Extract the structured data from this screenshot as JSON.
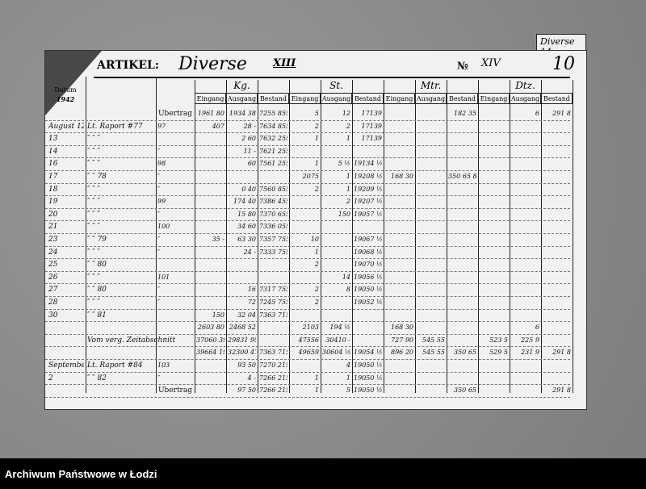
{
  "tab_label": "Diverse 14",
  "header": {
    "artikel_label": "ARTIKEL:",
    "artikel_value": "Diverse",
    "artikel_roman": "XIII",
    "number_label": "№",
    "number_value": "XIV",
    "page_number": "10",
    "datum_label": "Datum",
    "year": "1942"
  },
  "groups": [
    "Kg.",
    "St.",
    "Mtr.",
    "Dtz."
  ],
  "subheaders": [
    "Eingang",
    "Ausgang",
    "Bestand"
  ],
  "columns": [
    "date",
    "text",
    "ref",
    "kg_in",
    "kg_out",
    "kg_bal",
    "st_in",
    "st_out",
    "st_bal",
    "mtr_in",
    "mtr_out",
    "mtr_bal",
    "dtz_in",
    "dtz_out",
    "dtz_bal"
  ],
  "rows": [
    {
      "text": "Übertrag",
      "kg_in": "1961 80",
      "kg_out": "1934 38",
      "kg_bal": "7255 855",
      "st_in": "5",
      "st_out": "12",
      "st_bal": "17139",
      "mtr_bal": "182 35",
      "dtz_out": "6",
      "dtz_bal": "291 8"
    },
    {
      "date": "August 12",
      "text": "Lt. Raport #77",
      "ref": "97",
      "kg_in": "407",
      "kg_out": "28 -",
      "kg_bal": "7634 855",
      "st_in": "2",
      "st_out": "2",
      "st_bal": "17139"
    },
    {
      "date": "13",
      "text": "″  ″  ″",
      "kg_out": "2 60",
      "kg_bal": "7632 255",
      "st_in": "1",
      "st_out": "1",
      "st_bal": "17139"
    },
    {
      "date": "14",
      "text": "″  ″  ″",
      "ref": "″",
      "kg_out": "11 -",
      "kg_bal": "7621 255"
    },
    {
      "date": "16",
      "text": "″  ″  ″",
      "ref": "98",
      "kg_out": "60",
      "kg_bal": "7561 255",
      "st_in": "1",
      "st_out": "5 ½",
      "st_bal": "19134 ½"
    },
    {
      "date": "17",
      "text": "″  ″  78",
      "ref": "″",
      "st_in": "2075",
      "st_out": "1",
      "st_bal": "19208 ½",
      "mtr_in": "168 30",
      "mtr_bal": "350 65 8"
    },
    {
      "date": "18",
      "text": "″  ″  ″",
      "ref": "″",
      "kg_out": "0 40",
      "kg_bal": "7560 855",
      "st_in": "2",
      "st_out": "1",
      "st_bal": "19209 ½"
    },
    {
      "date": "19",
      "text": "″  ″  ″",
      "ref": "99",
      "kg_out": "174 40",
      "kg_bal": "7386 455",
      "st_out": "2",
      "st_bal": "19207 ½"
    },
    {
      "date": "20",
      "text": "″  ″  ″",
      "ref": "″",
      "kg_out": "15 80",
      "kg_bal": "7370 655",
      "st_out": "150",
      "st_bal": "19057 ½"
    },
    {
      "date": "21",
      "text": "″  ″  ″",
      "ref": "100",
      "kg_out": "34 60",
      "kg_bal": "7336 055"
    },
    {
      "date": "23",
      "text": "″  ″  79",
      "ref": "″",
      "kg_in": "35 -",
      "kg_out": "63 30",
      "kg_bal": "7357 755",
      "st_in": "10",
      "st_bal": "19067 ½"
    },
    {
      "date": "24",
      "text": "″  ″  ″",
      "ref": "″",
      "kg_out": "24 -",
      "kg_bal": "7333 755",
      "st_in": "1",
      "st_bal": "19068 ½"
    },
    {
      "date": "25",
      "text": "″  ″  80",
      "st_in": "2",
      "st_bal": "19070 ½"
    },
    {
      "date": "26",
      "text": "″  ″  ″",
      "ref": "101",
      "st_out": "14",
      "st_bal": "19056 ½"
    },
    {
      "date": "27",
      "text": "″  ″  80",
      "ref": "″",
      "kg_out": "16",
      "kg_bal": "7317 755",
      "st_in": "2",
      "st_out": "8",
      "st_bal": "19050 ½"
    },
    {
      "date": "28",
      "text": "″  ″  ″",
      "ref": "″",
      "kg_out": "72",
      "kg_bal": "7245 755",
      "st_in": "2",
      "st_bal": "19052 ½"
    },
    {
      "date": "30",
      "text": "″  ″  81",
      "kg_in": "150",
      "kg_out": "32 04",
      "kg_bal": "7363 715"
    },
    {
      "kg_in": "2603 80",
      "kg_out": "2468 52",
      "st_in": "2103",
      "st_out": "194 ½",
      "mtr_in": "168 30",
      "dtz_out": "6"
    },
    {
      "text": "Vom verg. Zeitabschnitt",
      "kg_in": "37060 39",
      "kg_out": "29831 953",
      "st_in": "47556",
      "st_out": "30410 -",
      "mtr_in": "727 90",
      "mtr_out": "545 55",
      "dtz_in": "523 5",
      "dtz_out": "225 9"
    },
    {
      "kg_in": "39664 19",
      "kg_out": "32300 475",
      "kg_bal": "7363 715",
      "st_in": "49659",
      "st_out": "30604 ½",
      "st_bal": "19054 ½",
      "mtr_in": "896 20",
      "mtr_out": "545 55",
      "mtr_bal": "350 65",
      "dtz_in": "529 5",
      "dtz_out": "231 9",
      "dtz_bal": "291 8"
    },
    {
      "date": "September 1",
      "text": "Lt. Raport #84",
      "ref": "103",
      "kg_out": "93 50",
      "kg_bal": "7270 215",
      "st_out": "4",
      "st_bal": "19050 ½"
    },
    {
      "date": "2",
      "text": "″  ″  82",
      "ref": "″",
      "kg_out": "4 -",
      "kg_bal": "7266 215",
      "st_in": "1",
      "st_out": "1",
      "st_bal": "19050 ½"
    },
    {
      "text": "Übertrag",
      "kg_out": "97 50",
      "kg_bal": "7266 215",
      "st_in": "1",
      "st_out": "5",
      "st_bal": "19050 ½",
      "mtr_bal": "350 65",
      "dtz_bal": "291 8"
    }
  ],
  "footer": {
    "archive_name": "Archiwum Państwowe w Łodzi"
  }
}
